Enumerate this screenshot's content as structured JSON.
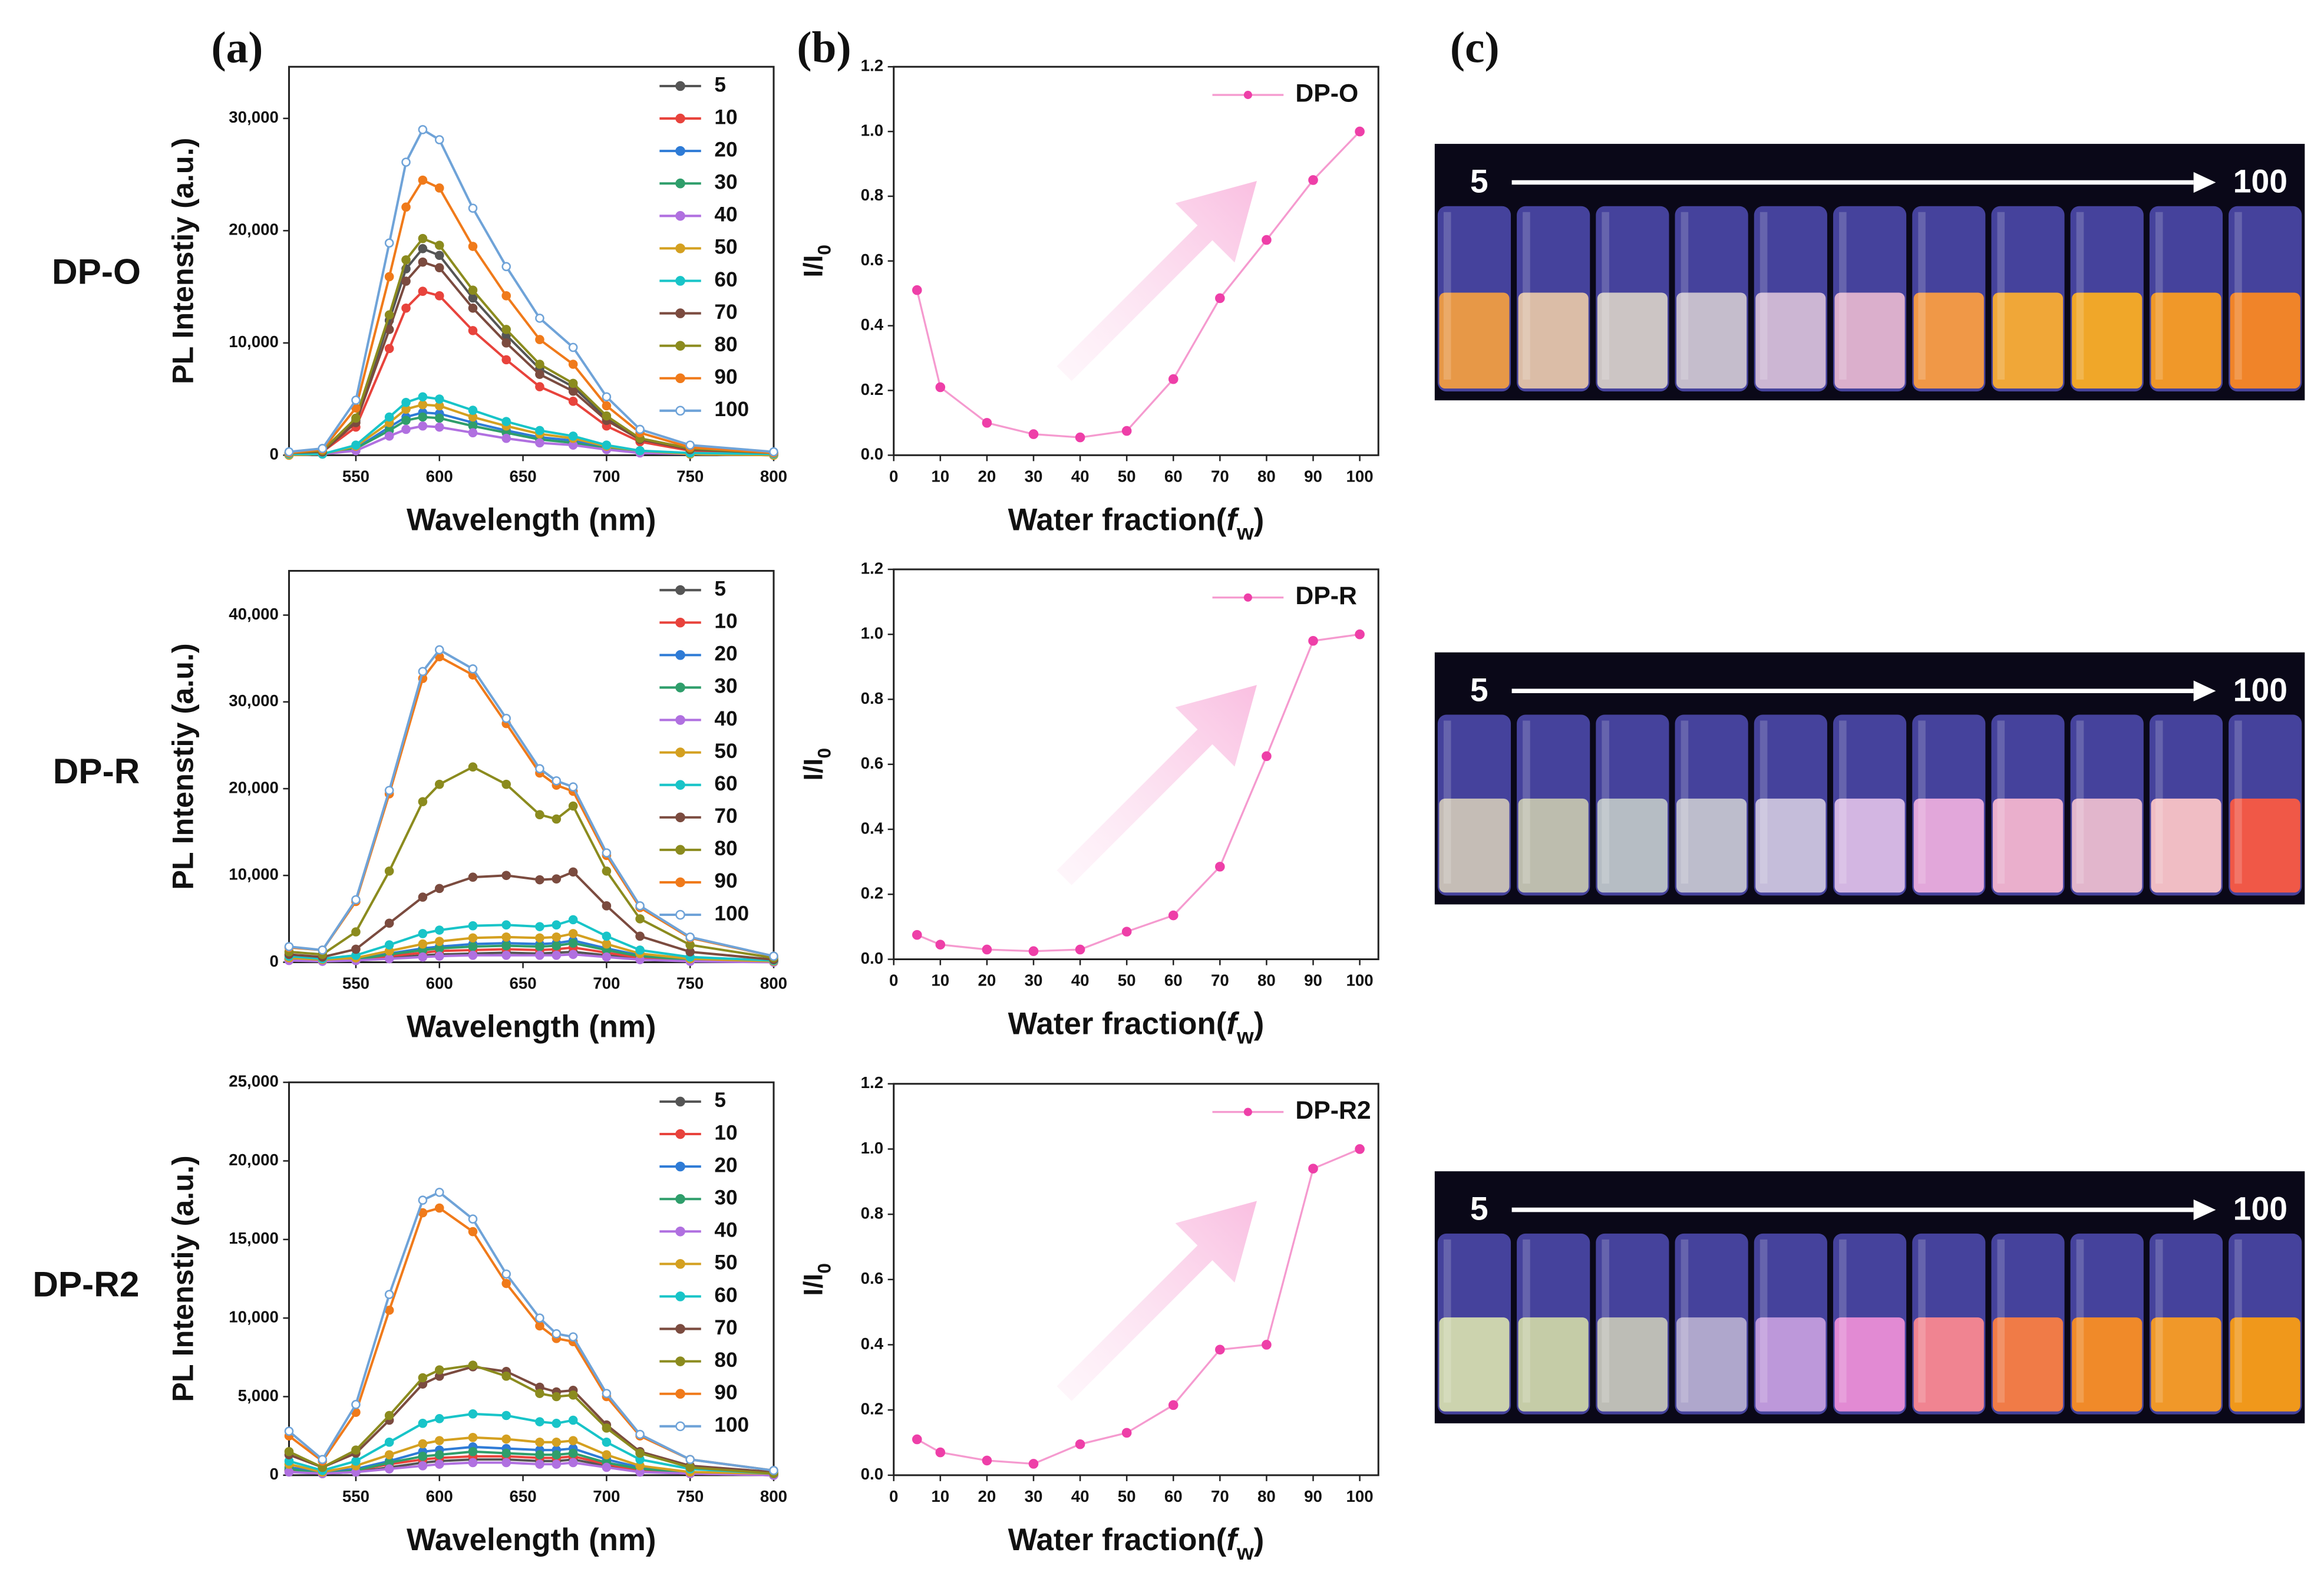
{
  "panel_labels": [
    "(a)",
    "(b)",
    "(c)"
  ],
  "row_labels": [
    "DP-O",
    "DP-R",
    "DP-R2"
  ],
  "photos": [
    {
      "start": "5",
      "end": "100"
    },
    {
      "start": "5",
      "end": "100"
    },
    {
      "start": "5",
      "end": "100"
    }
  ],
  "chart_data": [
    {
      "type": "line",
      "xlabel": "Wavelength (nm)",
      "ylabel": "PL Intenstiy (a.u.)",
      "xlim": [
        510,
        800
      ],
      "xticks": [
        550,
        600,
        650,
        700,
        750,
        800
      ],
      "ylim": [
        0,
        34600
      ],
      "yticks": [
        0,
        {
          "value": 10000,
          "label": "10,000"
        },
        {
          "value": 20000,
          "label": "20,000"
        },
        {
          "value": 30000,
          "label": "30,000"
        }
      ],
      "x": [
        510,
        530,
        550,
        570,
        580,
        590,
        600,
        620,
        640,
        660,
        680,
        700,
        720,
        750,
        800
      ],
      "series": [
        {
          "name": "5",
          "color": "#555555",
          "values": [
            200,
            400,
            3100,
            12000,
            16600,
            18400,
            17800,
            14000,
            10700,
            7700,
            6100,
            3300,
            1500,
            600,
            200
          ]
        },
        {
          "name": "10",
          "color": "#e8433c",
          "values": [
            100,
            300,
            2500,
            9500,
            13100,
            14600,
            14200,
            11100,
            8500,
            6100,
            4800,
            2600,
            1200,
            400,
            100
          ]
        },
        {
          "name": "20",
          "color": "#2e7bd6",
          "values": [
            0,
            100,
            600,
            2500,
            3400,
            3800,
            3700,
            2900,
            2200,
            1600,
            1300,
            700,
            300,
            100,
            0
          ]
        },
        {
          "name": "30",
          "color": "#2f9e6b",
          "values": [
            0,
            100,
            600,
            2200,
            3100,
            3400,
            3300,
            2600,
            2000,
            1400,
            1100,
            600,
            300,
            100,
            0
          ]
        },
        {
          "name": "40",
          "color": "#b070e0",
          "values": [
            0,
            100,
            400,
            1700,
            2300,
            2600,
            2500,
            2000,
            1500,
            1100,
            900,
            500,
            200,
            100,
            0
          ]
        },
        {
          "name": "50",
          "color": "#d4a020",
          "values": [
            0,
            100,
            800,
            2900,
            4100,
            4500,
            4400,
            3400,
            2600,
            1900,
            1500,
            800,
            400,
            100,
            0
          ]
        },
        {
          "name": "60",
          "color": "#18c4c8",
          "values": [
            100,
            100,
            900,
            3400,
            4700,
            5200,
            5000,
            4000,
            3000,
            2200,
            1700,
            900,
            400,
            200,
            100
          ]
        },
        {
          "name": "70",
          "color": "#7b4b3f",
          "values": [
            200,
            300,
            2900,
            11200,
            15500,
            17200,
            16700,
            13100,
            10000,
            7200,
            5700,
            3100,
            1400,
            500,
            200
          ]
        },
        {
          "name": "80",
          "color": "#8b8b1e",
          "values": [
            200,
            400,
            3300,
            12500,
            17400,
            19300,
            18700,
            14700,
            11200,
            8100,
            6400,
            3500,
            1500,
            600,
            200
          ]
        },
        {
          "name": "90",
          "color": "#f07a1a",
          "values": [
            200,
            500,
            4200,
            15900,
            22100,
            24500,
            23800,
            18600,
            14200,
            10300,
            8100,
            4400,
            2000,
            700,
            200
          ]
        },
        {
          "name": "100",
          "color": "#6fa3d8",
          "values": [
            300,
            600,
            4900,
            18900,
            26100,
            29000,
            28100,
            22000,
            16800,
            12200,
            9600,
            5200,
            2300,
            900,
            300
          ]
        }
      ]
    },
    {
      "type": "line",
      "xlabel": "Wavelength (nm)",
      "ylabel": "PL Intenstiy (a.u.)",
      "xlim": [
        510,
        800
      ],
      "xticks": [
        550,
        600,
        650,
        700,
        750,
        800
      ],
      "ylim": [
        0,
        45100
      ],
      "yticks": [
        0,
        {
          "value": 10000,
          "label": "10,000"
        },
        {
          "value": 20000,
          "label": "20,000"
        },
        {
          "value": 30000,
          "label": "30,000"
        },
        {
          "value": 40000,
          "label": "40,000"
        }
      ],
      "x": [
        510,
        530,
        550,
        570,
        590,
        600,
        620,
        640,
        660,
        670,
        680,
        700,
        720,
        750,
        800
      ],
      "series": [
        {
          "name": "5",
          "color": "#555555",
          "values": [
            300,
            200,
            200,
            500,
            800,
            900,
            1000,
            1100,
            1000,
            1100,
            1200,
            800,
            400,
            200,
            100
          ]
        },
        {
          "name": "10",
          "color": "#e8433c",
          "values": [
            300,
            200,
            300,
            700,
            1100,
            1300,
            1400,
            1500,
            1400,
            1500,
            1700,
            1100,
            500,
            200,
            100
          ]
        },
        {
          "name": "20",
          "color": "#2e7bd6",
          "values": [
            400,
            200,
            400,
            1000,
            1600,
            1800,
            2100,
            2200,
            2100,
            2200,
            2500,
            1600,
            800,
            300,
            100
          ]
        },
        {
          "name": "30",
          "color": "#2f9e6b",
          "values": [
            400,
            200,
            300,
            900,
            1400,
            1600,
            1800,
            1900,
            1800,
            1900,
            2200,
            1400,
            700,
            300,
            100
          ]
        },
        {
          "name": "40",
          "color": "#b070e0",
          "values": [
            200,
            100,
            200,
            400,
            600,
            700,
            800,
            800,
            800,
            800,
            900,
            600,
            300,
            100,
            0
          ]
        },
        {
          "name": "50",
          "color": "#d4a020",
          "values": [
            500,
            300,
            500,
            1300,
            2100,
            2400,
            2800,
            2900,
            2800,
            2900,
            3300,
            2100,
            1000,
            400,
            100
          ]
        },
        {
          "name": "60",
          "color": "#18c4c8",
          "values": [
            700,
            400,
            800,
            2000,
            3300,
            3700,
            4200,
            4300,
            4100,
            4300,
            4900,
            3000,
            1400,
            600,
            200
          ]
        },
        {
          "name": "70",
          "color": "#7b4b3f",
          "values": [
            900,
            600,
            1500,
            4500,
            7500,
            8500,
            9800,
            10000,
            9500,
            9600,
            10400,
            6500,
            3000,
            1200,
            300
          ]
        },
        {
          "name": "80",
          "color": "#8b8b1e",
          "values": [
            1200,
            900,
            3500,
            10500,
            18500,
            20500,
            22500,
            20500,
            17000,
            16500,
            18000,
            10500,
            5000,
            2000,
            500
          ]
        },
        {
          "name": "90",
          "color": "#f07a1a",
          "values": [
            1700,
            1400,
            7000,
            19400,
            32700,
            35200,
            33100,
            27500,
            21800,
            20400,
            19700,
            12300,
            6300,
            2800,
            700
          ]
        },
        {
          "name": "100",
          "color": "#6fa3d8",
          "values": [
            1800,
            1400,
            7200,
            19800,
            33500,
            36000,
            33800,
            28100,
            22300,
            20900,
            20200,
            12600,
            6500,
            2900,
            700
          ]
        }
      ]
    },
    {
      "type": "line",
      "xlabel": "Wavelength (nm)",
      "ylabel": "PL Intenstiy (a.u.)",
      "xlim": [
        510,
        800
      ],
      "xticks": [
        550,
        600,
        650,
        700,
        750,
        800
      ],
      "ylim": [
        0,
        25000
      ],
      "yticks": [
        0,
        {
          "value": 5000,
          "label": "5,000"
        },
        {
          "value": 10000,
          "label": "10,000"
        },
        {
          "value": 15000,
          "label": "15,000"
        },
        {
          "value": 20000,
          "label": "20,000"
        },
        {
          "value": 25000,
          "label": "25,000"
        }
      ],
      "x": [
        510,
        530,
        550,
        570,
        590,
        600,
        620,
        640,
        660,
        670,
        680,
        700,
        720,
        750,
        800
      ],
      "series": [
        {
          "name": "5",
          "color": "#555555",
          "values": [
            300,
            100,
            200,
            500,
            800,
            900,
            1000,
            1000,
            900,
            900,
            1000,
            600,
            300,
            100,
            0
          ]
        },
        {
          "name": "10",
          "color": "#e8433c",
          "values": [
            300,
            100,
            300,
            700,
            1000,
            1100,
            1200,
            1200,
            1100,
            1100,
            1200,
            700,
            300,
            100,
            0
          ]
        },
        {
          "name": "20",
          "color": "#2e7bd6",
          "values": [
            500,
            200,
            400,
            900,
            1500,
            1600,
            1800,
            1700,
            1600,
            1600,
            1700,
            1000,
            500,
            200,
            100
          ]
        },
        {
          "name": "30",
          "color": "#2f9e6b",
          "values": [
            400,
            100,
            300,
            800,
            1200,
            1300,
            1500,
            1400,
            1300,
            1300,
            1400,
            800,
            400,
            200,
            0
          ]
        },
        {
          "name": "40",
          "color": "#b070e0",
          "values": [
            200,
            100,
            200,
            400,
            600,
            700,
            800,
            800,
            700,
            700,
            800,
            500,
            200,
            100,
            0
          ]
        },
        {
          "name": "50",
          "color": "#d4a020",
          "values": [
            700,
            200,
            600,
            1300,
            2000,
            2200,
            2400,
            2300,
            2100,
            2100,
            2200,
            1300,
            600,
            200,
            100
          ]
        },
        {
          "name": "60",
          "color": "#18c4c8",
          "values": [
            900,
            300,
            900,
            2100,
            3300,
            3600,
            3900,
            3800,
            3400,
            3300,
            3500,
            2100,
            1000,
            400,
            100
          ]
        },
        {
          "name": "70",
          "color": "#7b4b3f",
          "values": [
            1300,
            500,
            1400,
            3500,
            5800,
            6300,
            6900,
            6600,
            5600,
            5300,
            5400,
            3200,
            1500,
            600,
            200
          ]
        },
        {
          "name": "80",
          "color": "#8b8b1e",
          "values": [
            1500,
            500,
            1600,
            3800,
            6200,
            6700,
            7000,
            6300,
            5200,
            5000,
            5100,
            3000,
            1400,
            500,
            100
          ]
        },
        {
          "name": "90",
          "color": "#f07a1a",
          "values": [
            2500,
            900,
            4000,
            10500,
            16700,
            17000,
            15500,
            12200,
            9500,
            8700,
            8500,
            5000,
            2500,
            1000,
            300
          ]
        },
        {
          "name": "100",
          "color": "#6fa3d8",
          "values": [
            2800,
            1000,
            4500,
            11500,
            17500,
            18000,
            16300,
            12800,
            10000,
            9000,
            8800,
            5200,
            2600,
            1000,
            300
          ]
        }
      ]
    },
    {
      "type": "line",
      "xlabel": [
        "Water fraction(",
        "f",
        "w",
        ")"
      ],
      "ylabel": [
        "I/I",
        "0"
      ],
      "xlim": [
        0,
        104
      ],
      "xticks": [
        0,
        10,
        20,
        30,
        40,
        50,
        60,
        70,
        80,
        90,
        100
      ],
      "ylim": [
        0,
        1.2
      ],
      "yticks": [
        {
          "value": 0,
          "label": "0.0"
        },
        0.2,
        0.4,
        0.6,
        0.8,
        {
          "value": 1,
          "label": "1.0"
        },
        1.2
      ],
      "x": [
        5,
        10,
        20,
        30,
        40,
        50,
        60,
        70,
        80,
        90,
        100
      ],
      "series": [
        {
          "name": "DP-O",
          "color": "#ee3fa8",
          "values": [
            0.51,
            0.21,
            0.1,
            0.065,
            0.055,
            0.075,
            0.235,
            0.485,
            0.665,
            0.85,
            1.0
          ]
        }
      ]
    },
    {
      "type": "line",
      "xlabel": [
        "Water fraction(",
        "f",
        "w",
        ")"
      ],
      "ylabel": [
        "I/I",
        "0"
      ],
      "xlim": [
        0,
        104
      ],
      "xticks": [
        0,
        10,
        20,
        30,
        40,
        50,
        60,
        70,
        80,
        90,
        100
      ],
      "ylim": [
        0,
        1.2
      ],
      "yticks": [
        {
          "value": 0,
          "label": "0.0"
        },
        0.2,
        0.4,
        0.6,
        0.8,
        {
          "value": 1,
          "label": "1.0"
        },
        1.2
      ],
      "x": [
        5,
        10,
        20,
        30,
        40,
        50,
        60,
        70,
        80,
        90,
        100
      ],
      "series": [
        {
          "name": "DP-R",
          "color": "#ee3fa8",
          "values": [
            0.075,
            0.045,
            0.03,
            0.025,
            0.03,
            0.085,
            0.135,
            0.285,
            0.625,
            0.98,
            1.0
          ]
        }
      ]
    },
    {
      "type": "line",
      "xlabel": [
        "Water fraction(",
        "f",
        "w",
        ")"
      ],
      "ylabel": [
        "I/I",
        "0"
      ],
      "xlim": [
        0,
        104
      ],
      "xticks": [
        0,
        10,
        20,
        30,
        40,
        50,
        60,
        70,
        80,
        90,
        100
      ],
      "ylim": [
        0,
        1.2
      ],
      "yticks": [
        {
          "value": 0,
          "label": "0.0"
        },
        0.2,
        0.4,
        0.6,
        0.8,
        {
          "value": 1,
          "label": "1.0"
        },
        1.2
      ],
      "x": [
        5,
        10,
        20,
        30,
        40,
        50,
        60,
        70,
        80,
        90,
        100
      ],
      "series": [
        {
          "name": "DP-R2",
          "color": "#ee3fa8",
          "values": [
            0.11,
            0.07,
            0.045,
            0.035,
            0.095,
            0.13,
            0.215,
            0.385,
            0.4,
            0.94,
            1.0
          ]
        }
      ]
    }
  ]
}
